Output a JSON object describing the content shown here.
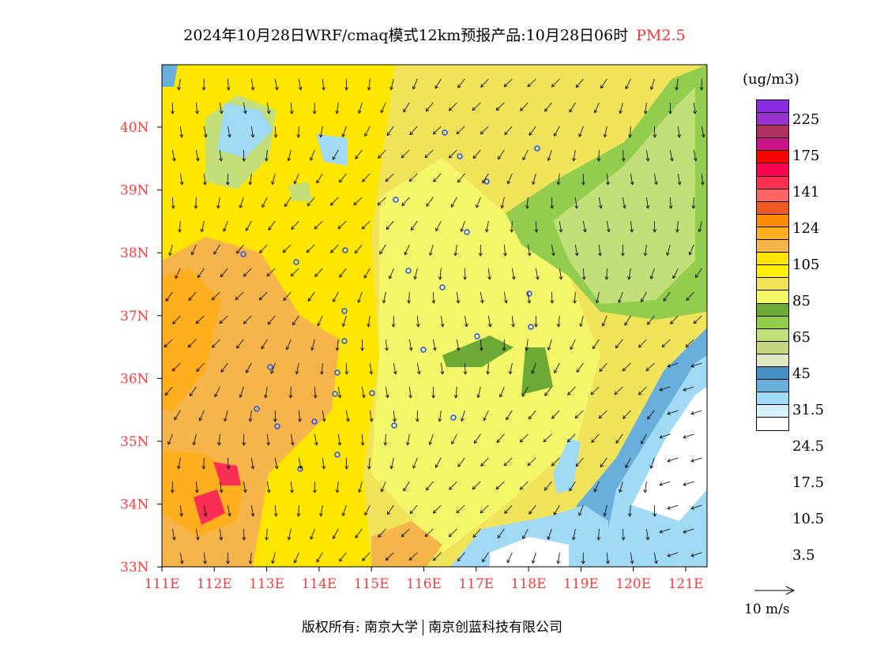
{
  "title": {
    "main": "2024年10月28日WRF/cmaq模式12km预报产品:10月28日06时",
    "species": "PM2.5"
  },
  "axes": {
    "lat": [
      "40N",
      "39N",
      "38N",
      "37N",
      "36N",
      "35N",
      "34N",
      "33N"
    ],
    "lon": [
      "111E",
      "112E",
      "113E",
      "114E",
      "115E",
      "116E",
      "117E",
      "118E",
      "119E",
      "120E",
      "121E"
    ]
  },
  "legend": {
    "unit": "(ug/m3)",
    "colors": [
      "#8a2be2",
      "#9932cc",
      "#b03060",
      "#c71585",
      "#ff0000",
      "#ff0050",
      "#f82e55",
      "#ff6464",
      "#f05a28",
      "#ff8c00",
      "#ffae1e",
      "#f5b54a",
      "#ffe600",
      "#fff000",
      "#f2e45a",
      "#f4f76a",
      "#6caa35",
      "#92cd4e",
      "#c2df7a",
      "#c2d87e",
      "#e0e9c2",
      "#4690c4",
      "#6aaedb",
      "#a0daf5",
      "#d8f0fa",
      "#ffffff"
    ],
    "labels": [
      "225",
      "175",
      "141",
      "124",
      "105",
      "85",
      "65",
      "45",
      "31.5",
      "24.5",
      "17.5",
      "10.5",
      "3.5"
    ]
  },
  "wind_vector": {
    "label": "10 m/s"
  },
  "footer": {
    "left": "版权所有: 南京大学",
    "right": "南京创蓝科技有限公司"
  }
}
